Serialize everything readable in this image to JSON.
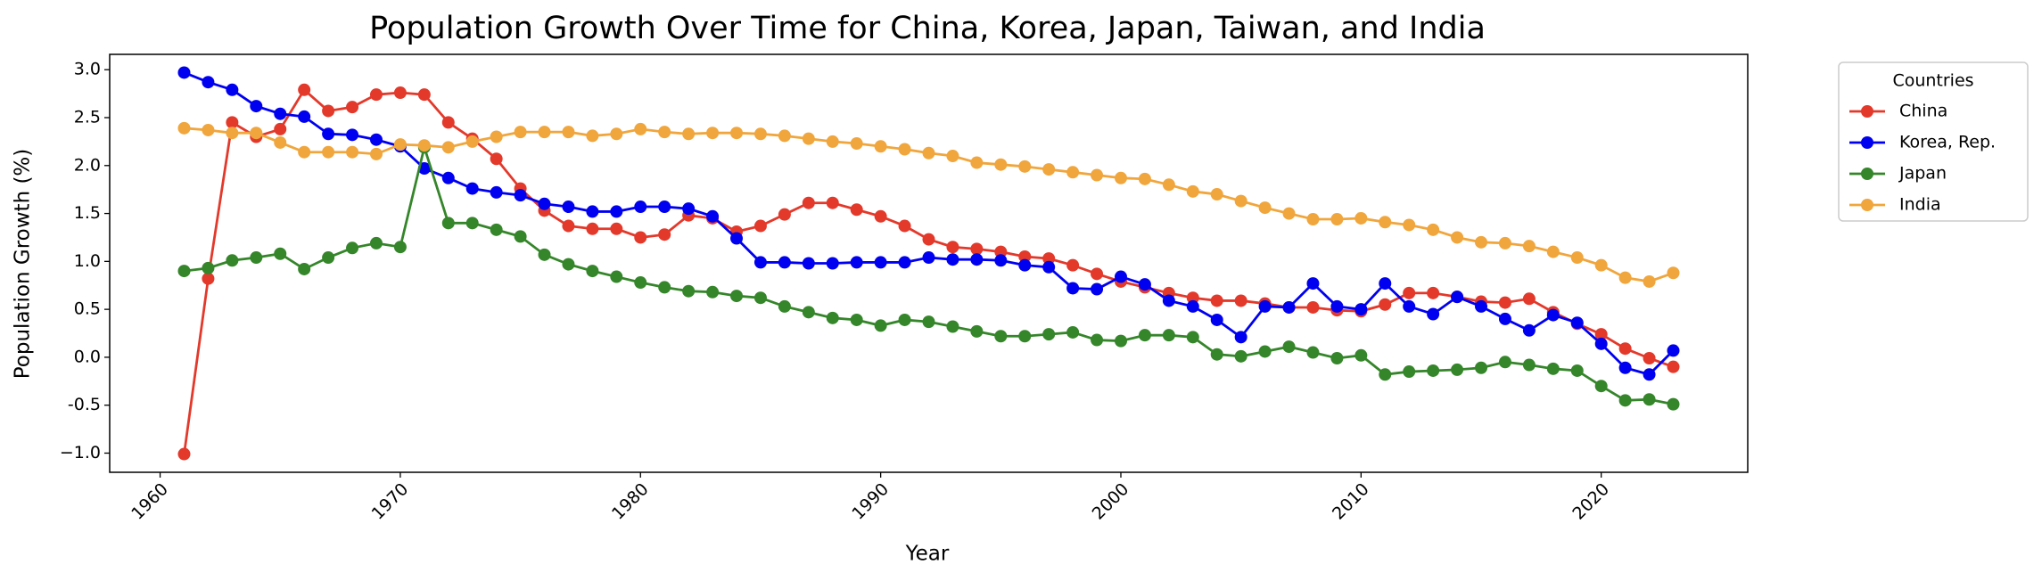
{
  "chart_data": {
    "type": "line",
    "title": "Population Growth Over Time for China, Korea, Japan, Taiwan, and India",
    "xlabel": "Year",
    "ylabel": "Population Growth (%)",
    "x": [
      1961,
      1962,
      1963,
      1964,
      1965,
      1966,
      1967,
      1968,
      1969,
      1970,
      1971,
      1972,
      1973,
      1974,
      1975,
      1976,
      1977,
      1978,
      1979,
      1980,
      1981,
      1982,
      1983,
      1984,
      1985,
      1986,
      1987,
      1988,
      1989,
      1990,
      1991,
      1992,
      1993,
      1994,
      1995,
      1996,
      1997,
      1998,
      1999,
      2000,
      2001,
      2002,
      2003,
      2004,
      2005,
      2006,
      2007,
      2008,
      2009,
      2010,
      2011,
      2012,
      2013,
      2014,
      2015,
      2016,
      2017,
      2018,
      2019,
      2020,
      2021,
      2022,
      2023
    ],
    "series": [
      {
        "name": "China",
        "color": "#e3392b",
        "values": [
          -1.01,
          0.82,
          2.45,
          2.3,
          2.38,
          2.79,
          2.57,
          2.61,
          2.74,
          2.76,
          2.74,
          2.45,
          2.28,
          2.07,
          1.76,
          1.53,
          1.37,
          1.34,
          1.34,
          1.25,
          1.28,
          1.48,
          1.45,
          1.31,
          1.37,
          1.49,
          1.61,
          1.61,
          1.54,
          1.47,
          1.37,
          1.23,
          1.15,
          1.13,
          1.1,
          1.05,
          1.03,
          0.96,
          0.87,
          0.79,
          0.73,
          0.67,
          0.62,
          0.59,
          0.59,
          0.56,
          0.52,
          0.52,
          0.49,
          0.48,
          0.55,
          0.67,
          0.67,
          0.63,
          0.58,
          0.57,
          0.61,
          0.47,
          0.35,
          0.24,
          0.09,
          -0.01,
          -0.1
        ]
      },
      {
        "name": "Korea, Rep.",
        "color": "#0000f0",
        "values": [
          2.97,
          2.87,
          2.79,
          2.62,
          2.54,
          2.51,
          2.33,
          2.32,
          2.27,
          2.2,
          1.97,
          1.87,
          1.76,
          1.72,
          1.69,
          1.6,
          1.57,
          1.52,
          1.52,
          1.57,
          1.57,
          1.55,
          1.47,
          1.24,
          0.99,
          0.99,
          0.98,
          0.98,
          0.99,
          0.99,
          0.99,
          1.04,
          1.02,
          1.02,
          1.01,
          0.96,
          0.94,
          0.72,
          0.71,
          0.84,
          0.76,
          0.59,
          0.53,
          0.39,
          0.21,
          0.53,
          0.52,
          0.77,
          0.53,
          0.5,
          0.77,
          0.53,
          0.45,
          0.63,
          0.53,
          0.4,
          0.28,
          0.44,
          0.36,
          0.14,
          -0.11,
          -0.18,
          0.07
        ]
      },
      {
        "name": "Japan",
        "color": "#35862a",
        "values": [
          0.9,
          0.93,
          1.01,
          1.04,
          1.08,
          0.92,
          1.04,
          1.14,
          1.19,
          1.15,
          2.19,
          1.4,
          1.4,
          1.33,
          1.26,
          1.07,
          0.97,
          0.9,
          0.84,
          0.78,
          0.73,
          0.69,
          0.68,
          0.64,
          0.62,
          0.53,
          0.47,
          0.41,
          0.39,
          0.33,
          0.39,
          0.37,
          0.32,
          0.27,
          0.22,
          0.22,
          0.24,
          0.26,
          0.18,
          0.17,
          0.23,
          0.23,
          0.21,
          0.03,
          0.01,
          0.06,
          0.11,
          0.05,
          -0.01,
          0.02,
          -0.18,
          -0.15,
          -0.14,
          -0.13,
          -0.11,
          -0.05,
          -0.08,
          -0.12,
          -0.14,
          -0.3,
          -0.45,
          -0.44,
          -0.49
        ]
      },
      {
        "name": "India",
        "color": "#f0a63c",
        "values": [
          2.39,
          2.37,
          2.34,
          2.34,
          2.24,
          2.14,
          2.14,
          2.14,
          2.12,
          2.22,
          2.21,
          2.19,
          2.25,
          2.3,
          2.35,
          2.35,
          2.35,
          2.31,
          2.33,
          2.38,
          2.35,
          2.33,
          2.34,
          2.34,
          2.33,
          2.31,
          2.28,
          2.25,
          2.23,
          2.2,
          2.17,
          2.13,
          2.1,
          2.03,
          2.01,
          1.99,
          1.96,
          1.93,
          1.9,
          1.87,
          1.86,
          1.8,
          1.73,
          1.7,
          1.63,
          1.56,
          1.5,
          1.44,
          1.44,
          1.45,
          1.41,
          1.38,
          1.33,
          1.25,
          1.2,
          1.19,
          1.16,
          1.1,
          1.04,
          0.96,
          0.83,
          0.79,
          0.88
        ]
      }
    ],
    "xlim": [
      1957.9,
      2026.1
    ],
    "ylim": [
      -1.2,
      3.16
    ],
    "xticks": [
      1960,
      1970,
      1980,
      1990,
      2000,
      2010,
      2020
    ],
    "yticks": [
      {
        "value": -1,
        "label": "−1.0"
      },
      -0.5,
      {
        "value": 0,
        "label": "0.0"
      },
      0.5,
      {
        "value": 1,
        "label": "1.0"
      },
      1.5,
      {
        "value": 2,
        "label": "2.0"
      },
      2.5,
      {
        "value": 3,
        "label": "3.0"
      }
    ],
    "grid": false,
    "legend_title": "Countries",
    "legend_position": "right"
  }
}
